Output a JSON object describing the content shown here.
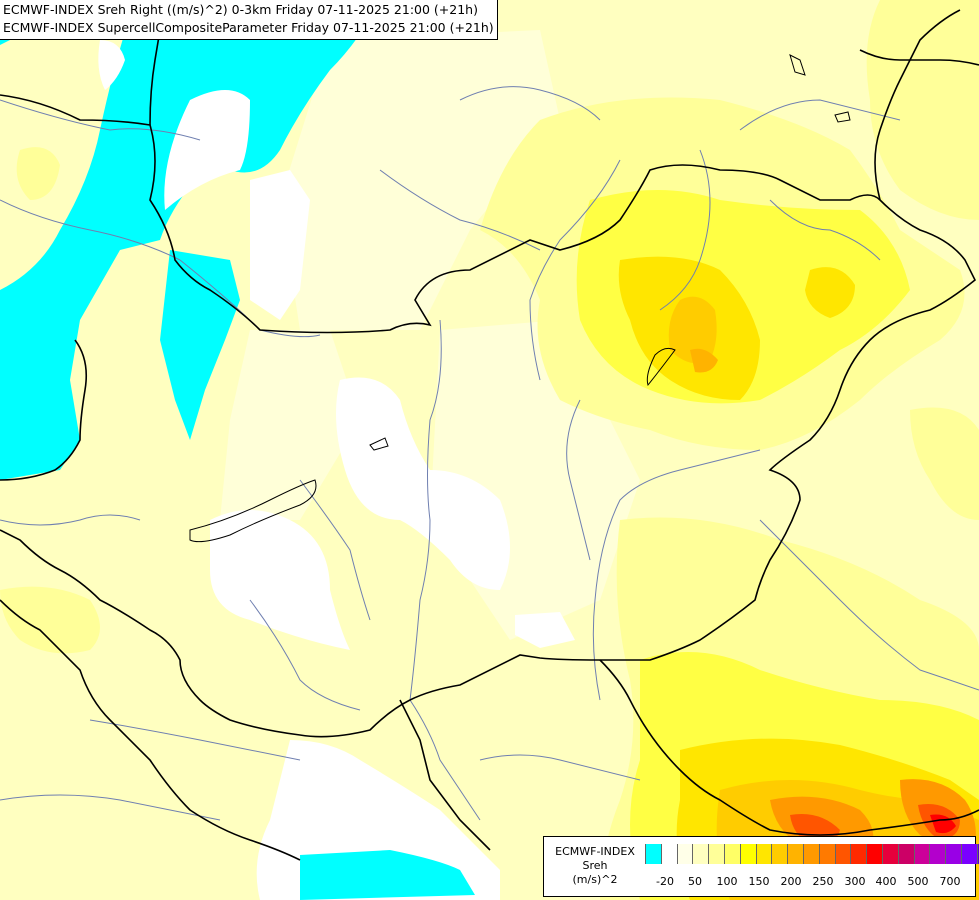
{
  "titles": {
    "line1": "ECMWF-INDEX Sreh Right ((m/s)^2) 0-3km Friday 07-11-2025 21:00 (+21h)",
    "line2": "ECMWF-INDEX SupercellCompositeParameter Friday 07-11-2025 21:00 (+21h)"
  },
  "legend": {
    "line1": "ECMWF-INDEX",
    "line2": "Sreh",
    "line3": "(m/s)^2",
    "colors": [
      "#00ffff",
      "#ffffff",
      "#ffffe8",
      "#ffffc0",
      "#ffff99",
      "#ffff66",
      "#ffff00",
      "#ffe600",
      "#ffcc00",
      "#ffb300",
      "#ff9900",
      "#ff7a00",
      "#ff5500",
      "#ff2a00",
      "#ff0000",
      "#e6003c",
      "#cc0066",
      "#cc0099",
      "#b300cc",
      "#9900e6",
      "#7a00ff",
      "#5500cc",
      "#2a0099",
      "#000080"
    ],
    "ticks": [
      "-20",
      "50",
      "100",
      "150",
      "200",
      "250",
      "300",
      "400",
      "500",
      "700"
    ]
  }
}
